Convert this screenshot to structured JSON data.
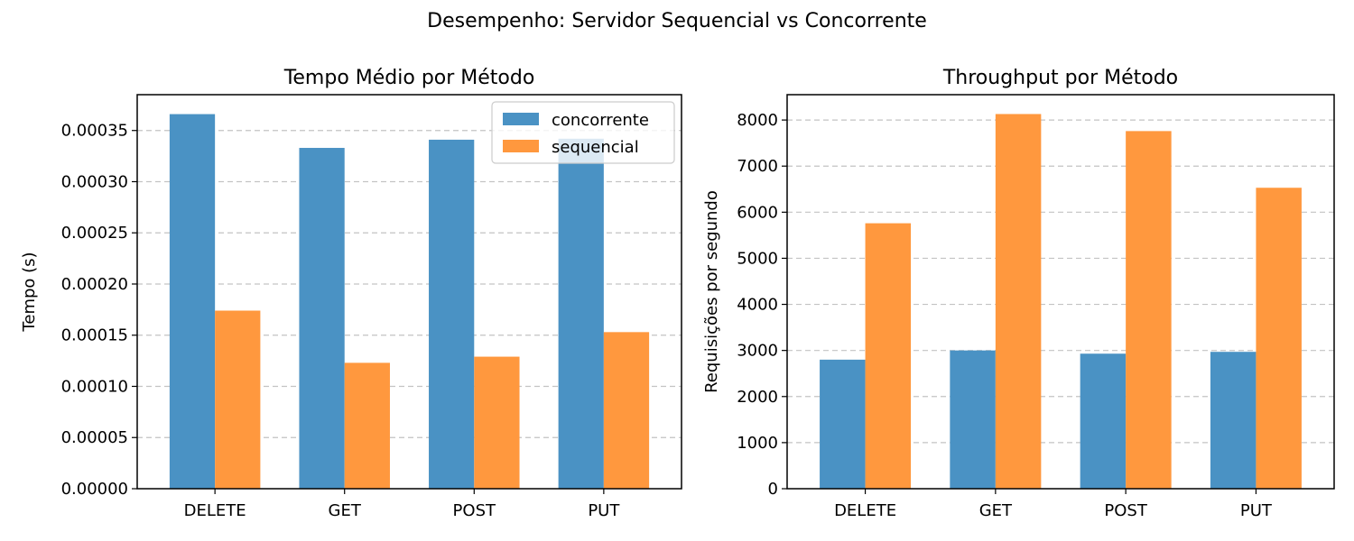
{
  "figure": {
    "title": "Desempenho: Servidor Sequencial vs Concorrente"
  },
  "colors": {
    "concorrente": "#4a92c4",
    "sequencial": "#ff983e"
  },
  "chart_data": [
    {
      "type": "bar",
      "title": "Tempo Médio por Método",
      "xlabel": "",
      "ylabel": "Tempo (s)",
      "categories": [
        "DELETE",
        "GET",
        "POST",
        "PUT"
      ],
      "ylim": [
        0,
        0.000385
      ],
      "yticks": [
        0,
        5e-05,
        0.0001,
        0.00015,
        0.0002,
        0.00025,
        0.0003,
        0.00035
      ],
      "ytick_labels": [
        "0.00000",
        "0.00005",
        "0.00010",
        "0.00015",
        "0.00020",
        "0.00025",
        "0.00030",
        "0.00035"
      ],
      "grid": "y",
      "legend": "top-right",
      "series": [
        {
          "name": "concorrente",
          "values": [
            0.000366,
            0.000333,
            0.000341,
            0.000342
          ]
        },
        {
          "name": "sequencial",
          "values": [
            0.000174,
            0.000123,
            0.000129,
            0.000153
          ]
        }
      ]
    },
    {
      "type": "bar",
      "title": "Throughput por Método",
      "xlabel": "",
      "ylabel": "Requisições por segundo",
      "categories": [
        "DELETE",
        "GET",
        "POST",
        "PUT"
      ],
      "ylim": [
        0,
        8550
      ],
      "yticks": [
        0,
        1000,
        2000,
        3000,
        4000,
        5000,
        6000,
        7000,
        8000
      ],
      "ytick_labels": [
        "0",
        "1000",
        "2000",
        "3000",
        "4000",
        "5000",
        "6000",
        "7000",
        "8000"
      ],
      "grid": "y",
      "legend": "none",
      "series": [
        {
          "name": "concorrente",
          "values": [
            2800,
            3000,
            2930,
            2970
          ]
        },
        {
          "name": "sequencial",
          "values": [
            5760,
            8130,
            7760,
            6530
          ]
        }
      ]
    }
  ]
}
